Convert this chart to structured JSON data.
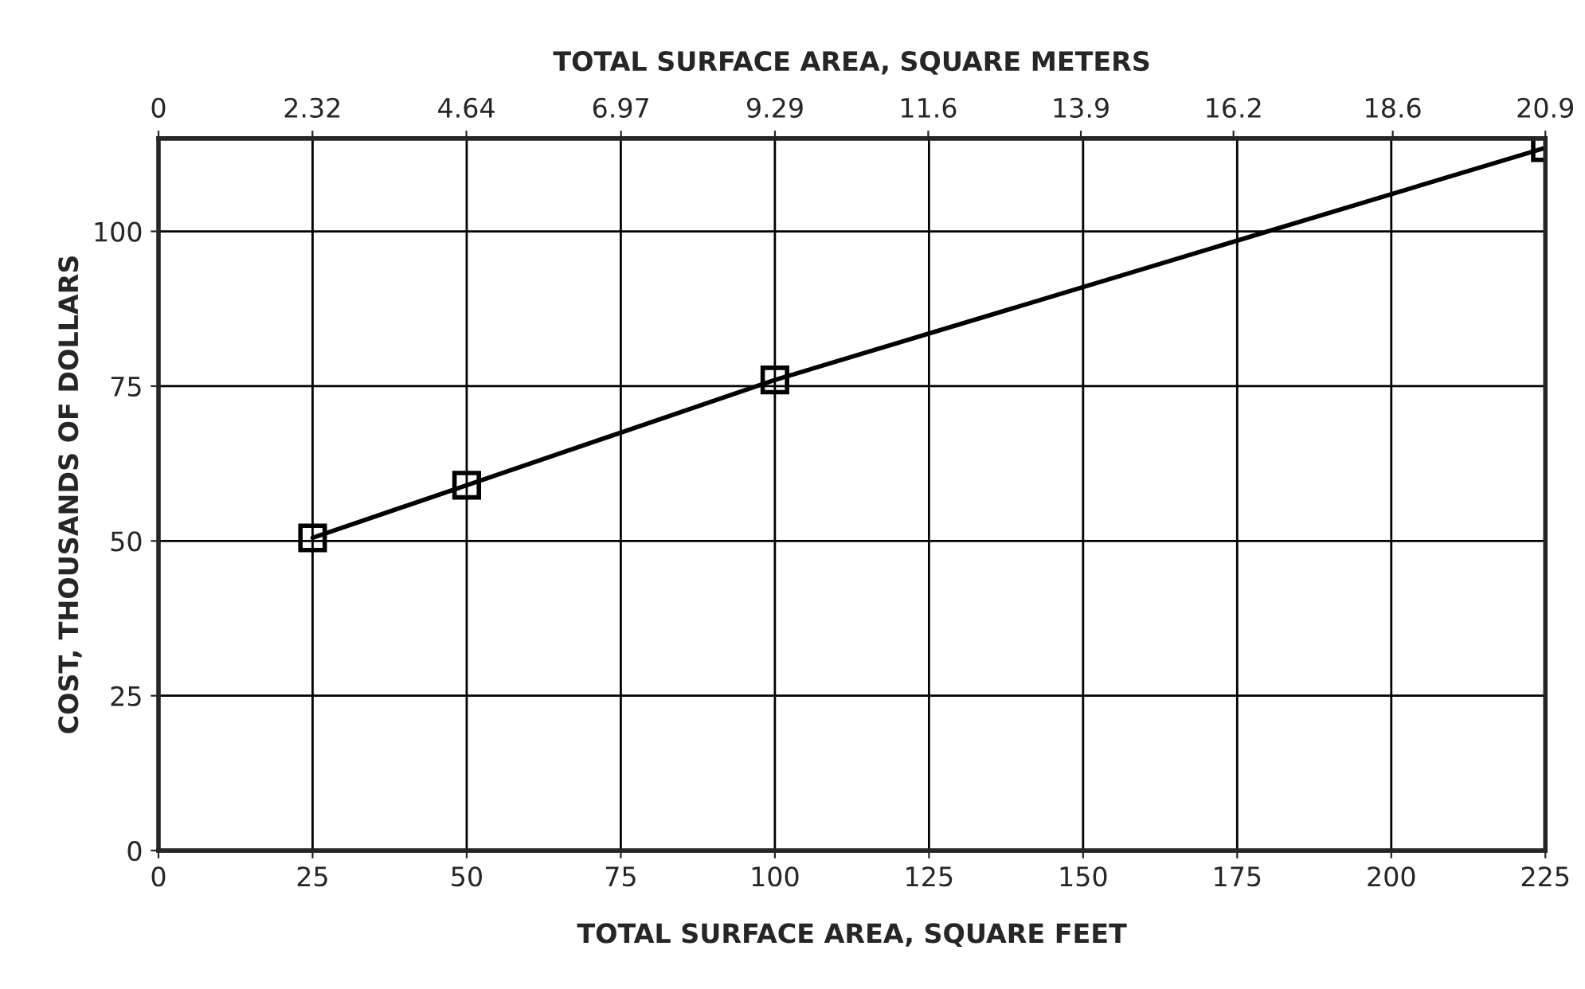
{
  "chart_data": {
    "type": "line",
    "xlabel": "TOTAL SURFACE AREA, SQUARE FEET",
    "x2label": "TOTAL SURFACE AREA, SQUARE METERS",
    "ylabel": "COST, THOUSANDS OF DOLLARS",
    "x": [
      25,
      50,
      100,
      225
    ],
    "series": [
      {
        "color": "#000000",
        "values": [
          50.5,
          59,
          76,
          113.5
        ]
      }
    ],
    "xlim": [
      0,
      225
    ],
    "xticks": [
      0,
      25,
      50,
      75,
      100,
      125,
      150,
      175,
      200,
      225
    ],
    "x2lim": [
      0,
      20.9
    ],
    "x2ticks": [
      0,
      2.32,
      4.64,
      6.97,
      9.29,
      11.6,
      13.9,
      16.2,
      18.6,
      20.9
    ],
    "ylim": [
      0,
      115
    ],
    "yticks": [
      0,
      25,
      50,
      75,
      100
    ],
    "grid": true,
    "marker": "square",
    "line_style": "solid"
  }
}
